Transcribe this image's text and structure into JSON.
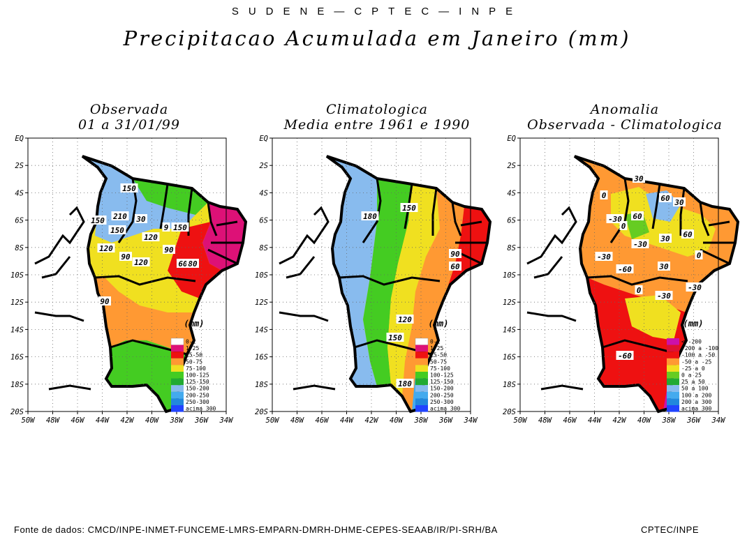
{
  "header": {
    "agency": "SUDENE—CPTEC—INPE",
    "title": "Precipitacao Acumulada em Janeiro (mm)"
  },
  "axes": {
    "y_labels": [
      "EQ",
      "2S",
      "4S",
      "6S",
      "8S",
      "10S",
      "12S",
      "14S",
      "16S",
      "18S",
      "20S"
    ],
    "x_labels": [
      "50W",
      "48W",
      "46W",
      "44W",
      "42W",
      "40W",
      "38W",
      "36W",
      "34W"
    ]
  },
  "panels": [
    {
      "title_line1": "Observada",
      "title_line2": "01 a 31/01/99",
      "units": "(mm)",
      "legend": [
        {
          "label": "0-1",
          "color": "#ffffff"
        },
        {
          "label": "1-25",
          "color": "#dd1177"
        },
        {
          "label": "25-50",
          "color": "#ee1111"
        },
        {
          "label": "50-75",
          "color": "#ff9933"
        },
        {
          "label": "75-100",
          "color": "#f0e020"
        },
        {
          "label": "100-125",
          "color": "#44cc22"
        },
        {
          "label": "125-150",
          "color": "#22aa33"
        },
        {
          "label": "150-200",
          "color": "#88bbee"
        },
        {
          "label": "200-250",
          "color": "#44aaee"
        },
        {
          "label": "250-300",
          "color": "#2288dd"
        },
        {
          "label": "acima 300",
          "color": "#2244ff"
        }
      ],
      "contour_labels": [
        "150",
        "210",
        "150",
        "150",
        "30",
        "9",
        "150",
        "120",
        "120",
        "90",
        "90",
        "60",
        "120",
        "80",
        "90"
      ]
    },
    {
      "title_line1": "Climatologica",
      "title_line2": "Media entre 1961 e 1990",
      "units": "(mm)",
      "legend": [
        {
          "label": "0-1",
          "color": "#ffffff"
        },
        {
          "label": "1-25",
          "color": "#dd1177"
        },
        {
          "label": "25-50",
          "color": "#ee1111"
        },
        {
          "label": "50-75",
          "color": "#ff9933"
        },
        {
          "label": "75-100",
          "color": "#f0e020"
        },
        {
          "label": "100-125",
          "color": "#44cc22"
        },
        {
          "label": "125-150",
          "color": "#22aa33"
        },
        {
          "label": "150-200",
          "color": "#88bbee"
        },
        {
          "label": "200-250",
          "color": "#44aaee"
        },
        {
          "label": "250-300",
          "color": "#2288dd"
        },
        {
          "label": "acima 300",
          "color": "#2244ff"
        }
      ],
      "contour_labels": [
        "180",
        "150",
        "90",
        "60",
        "120",
        "150",
        "180"
      ]
    },
    {
      "title_line1": "Anomalia",
      "title_line2": "Observada - Climatologica",
      "units": "(mm)",
      "legend": [
        {
          "label": "< -200",
          "color": "#cc11aa"
        },
        {
          "label": "-200 a -100",
          "color": "#dd1133"
        },
        {
          "label": "-100 a -50",
          "color": "#ee1111"
        },
        {
          "label": "-50 a -25",
          "color": "#ff9933"
        },
        {
          "label": "-25 a 0",
          "color": "#f0e020"
        },
        {
          "label": "0 a 25",
          "color": "#66cc22"
        },
        {
          "label": "25 a 50",
          "color": "#22aa33"
        },
        {
          "label": "50 a 100",
          "color": "#88bbee"
        },
        {
          "label": "100 a 200",
          "color": "#44aaee"
        },
        {
          "label": "200 a 300",
          "color": "#2288dd"
        },
        {
          "label": "acima 300",
          "color": "#2244ff"
        }
      ],
      "contour_labels": [
        "30",
        "0",
        "60",
        "30",
        "-30",
        "0",
        "60",
        "-30",
        "30",
        "60",
        "-30",
        "0",
        "-60",
        "30",
        "0",
        "-30",
        "-30",
        "-60"
      ]
    }
  ],
  "footer": {
    "source": "Fonte de dados: CMCD/INPE-INMET-FUNCEME-LMRS-EMPARN-DMRH-DHME-CEPES-SEAAB/IR/PI-SRH/BA",
    "credit": "CPTEC/INPE"
  }
}
